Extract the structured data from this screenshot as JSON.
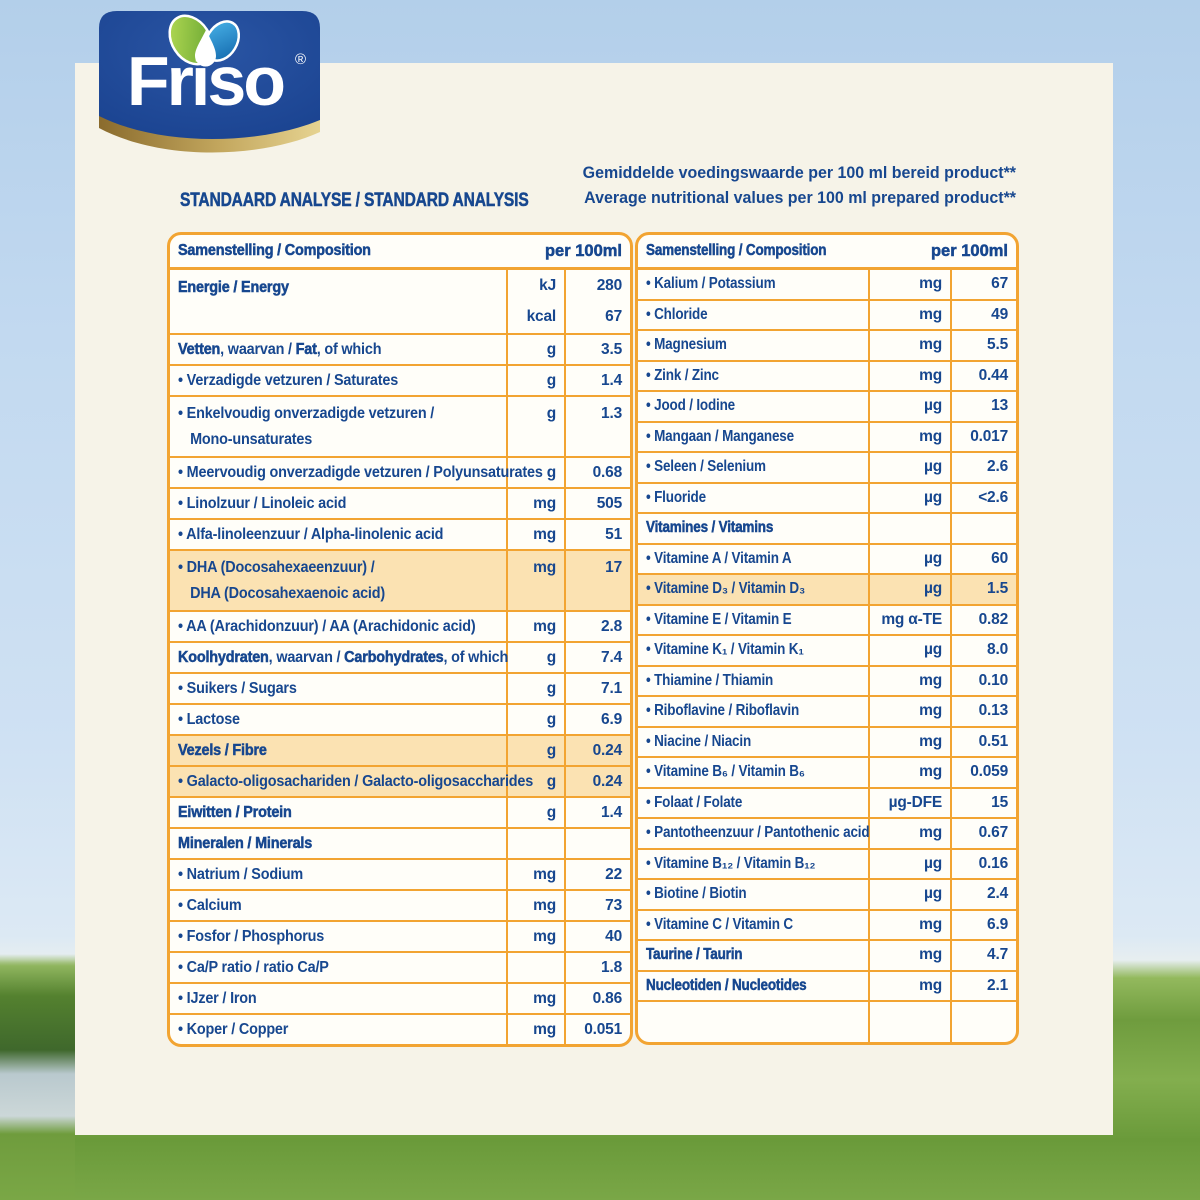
{
  "brand": {
    "name": "Friso",
    "registered": "®"
  },
  "title": "STANDAARD ANALYSE / STANDARD ANALYSIS",
  "note": {
    "line1": "Gemiddelde voedingswaarde per 100 ml bereid product**",
    "line2": "Average nutritional values per 100 ml prepared product**"
  },
  "colors": {
    "accent_orange": "#f2a432",
    "text_navy": "#17478f",
    "row_highlight": "#fbe2b2",
    "panel_cream": "#f6f3e8",
    "logo_blue": "#1d4795",
    "sky": "#c2d9f0",
    "grass": "#7aa747"
  },
  "tables": {
    "left": {
      "header": {
        "label": "Samenstelling / Composition",
        "per": "per 100ml"
      },
      "rows": [
        {
          "label": "Energie / Energy",
          "bold": true,
          "units": [
            "kJ",
            "kcal"
          ],
          "values": [
            "280",
            "67"
          ]
        },
        {
          "parts": [
            {
              "text": "Vetten",
              "bold": true
            },
            {
              "text": ", waarvan / "
            },
            {
              "text": "Fat",
              "bold": true
            },
            {
              "text": ", of which"
            }
          ],
          "unit": "g",
          "value": "3.5"
        },
        {
          "label": "• Verzadigde vetzuren / Saturates",
          "unit": "g",
          "value": "1.4"
        },
        {
          "label": "• Enkelvoudig onverzadigde vetzuren /",
          "label2": "Mono-unsaturates",
          "unit": "g",
          "value": "1.3"
        },
        {
          "label": "• Meervoudig onverzadigde vetzuren / Polyunsaturates",
          "unit": "g",
          "value": "0.68"
        },
        {
          "label": "• Linolzuur / Linoleic acid",
          "unit": "mg",
          "value": "505"
        },
        {
          "label": "• Alfa-linoleenzuur / Alpha-linolenic acid",
          "unit": "mg",
          "value": "51"
        },
        {
          "label": "• DHA (Docosahexaeenzuur) /",
          "label2": "DHA (Docosahexaenoic acid)",
          "unit": "mg",
          "value": "17",
          "highlight": true
        },
        {
          "label": "• AA (Arachidonzuur) / AA (Arachidonic acid)",
          "unit": "mg",
          "value": "2.8"
        },
        {
          "parts": [
            {
              "text": "Koolhydraten",
              "bold": true
            },
            {
              "text": ", waarvan / "
            },
            {
              "text": "Carbohydrates",
              "bold": true
            },
            {
              "text": ", of which"
            }
          ],
          "unit": "g",
          "value": "7.4"
        },
        {
          "label": "• Suikers / Sugars",
          "unit": "g",
          "value": "7.1"
        },
        {
          "label": "• Lactose",
          "unit": "g",
          "value": "6.9"
        },
        {
          "label": "Vezels / Fibre",
          "bold": true,
          "unit": "g",
          "value": "0.24",
          "highlight": true
        },
        {
          "label": "• Galacto-oligosachariden / Galacto-oligosaccharides",
          "unit": "g",
          "value": "0.24",
          "highlight": true
        },
        {
          "label": "Eiwitten / Protein",
          "bold": true,
          "unit": "g",
          "value": "1.4"
        },
        {
          "label": "Mineralen / Minerals",
          "bold": true,
          "unit": "",
          "value": ""
        },
        {
          "label": "• Natrium / Sodium",
          "unit": "mg",
          "value": "22"
        },
        {
          "label": "• Calcium",
          "unit": "mg",
          "value": "73"
        },
        {
          "label": "• Fosfor / Phosphorus",
          "unit": "mg",
          "value": "40"
        },
        {
          "label": "• Ca/P ratio / ratio Ca/P",
          "unit": "",
          "value": "1.8"
        },
        {
          "label": "• IJzer / Iron",
          "unit": "mg",
          "value": "0.86"
        },
        {
          "label": "• Koper / Copper",
          "unit": "mg",
          "value": "0.051"
        }
      ]
    },
    "right": {
      "header": {
        "label": "Samenstelling / Composition",
        "per": "per 100ml"
      },
      "rows": [
        {
          "label": "• Kalium / Potassium",
          "unit": "mg",
          "value": "67"
        },
        {
          "label": "• Chloride",
          "unit": "mg",
          "value": "49"
        },
        {
          "label": "• Magnesium",
          "unit": "mg",
          "value": "5.5"
        },
        {
          "label": "• Zink / Zinc",
          "unit": "mg",
          "value": "0.44"
        },
        {
          "label": "• Jood / Iodine",
          "unit": "µg",
          "value": "13"
        },
        {
          "label": "• Mangaan / Manganese",
          "unit": "mg",
          "value": "0.017"
        },
        {
          "label": "• Seleen / Selenium",
          "unit": "µg",
          "value": "2.6"
        },
        {
          "label": "• Fluoride",
          "unit": "µg",
          "value": "<2.6"
        },
        {
          "label": "Vitamines / Vitamins",
          "bold": true,
          "unit": "",
          "value": ""
        },
        {
          "label": "• Vitamine A / Vitamin A",
          "unit": "µg",
          "value": "60"
        },
        {
          "label": "• Vitamine D₃ / Vitamin D₃",
          "unit": "µg",
          "value": "1.5",
          "highlight": true
        },
        {
          "label": "• Vitamine E / Vitamin E",
          "unit": "mg α-TE",
          "value": "0.82"
        },
        {
          "label": "• Vitamine K₁ / Vitamin K₁",
          "unit": "µg",
          "value": "8.0"
        },
        {
          "label": "• Thiamine / Thiamin",
          "unit": "mg",
          "value": "0.10"
        },
        {
          "label": "• Riboflavine / Riboflavin",
          "unit": "mg",
          "value": "0.13"
        },
        {
          "label": "• Niacine / Niacin",
          "unit": "mg",
          "value": "0.51"
        },
        {
          "label": "• Vitamine B₆ / Vitamin B₆",
          "unit": "mg",
          "value": "0.059"
        },
        {
          "label": "• Folaat / Folate",
          "unit": "µg-DFE",
          "value": "15"
        },
        {
          "label": "• Pantotheenzuur / Pantothenic acid",
          "unit": "mg",
          "value": "0.67"
        },
        {
          "label": "• Vitamine B₁₂ / Vitamin B₁₂",
          "unit": "µg",
          "value": "0.16"
        },
        {
          "label": "• Biotine / Biotin",
          "unit": "µg",
          "value": "2.4"
        },
        {
          "label": "• Vitamine C / Vitamin C",
          "unit": "mg",
          "value": "6.9"
        },
        {
          "label": "Taurine / Taurin",
          "bold": true,
          "unit": "mg",
          "value": "4.7"
        },
        {
          "label": "Nucleotiden / Nucleotides",
          "bold": true,
          "unit": "mg",
          "value": "2.1"
        },
        {
          "label": "",
          "unit": "",
          "value": "",
          "empty": true
        }
      ]
    }
  }
}
